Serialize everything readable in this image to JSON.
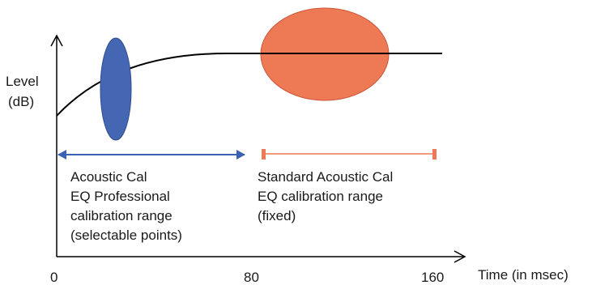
{
  "axes": {
    "y_label": [
      "Level",
      "(dB)"
    ],
    "x_label": "Time (in msec)",
    "x_ticks": [
      "0",
      "80",
      "160"
    ]
  },
  "annotations": {
    "professional": {
      "lines": [
        "Acoustic Cal",
        "EQ Professional",
        "calibration range",
        "(selectable points)"
      ],
      "color": "#3a62b0"
    },
    "standard": {
      "lines": [
        "Standard Acoustic Cal",
        "EQ calibration range",
        "(fixed)"
      ],
      "color": "#ee7a55"
    }
  },
  "colors": {
    "axis": "#000000",
    "curve": "#000000",
    "blue_ellipse": "#4466b3",
    "blue_ellipse_stroke": "#2f4f8f",
    "orange_ellipse": "#ee7a55",
    "orange_ellipse_stroke": "#c9573a",
    "text": "#1a1a1a"
  }
}
